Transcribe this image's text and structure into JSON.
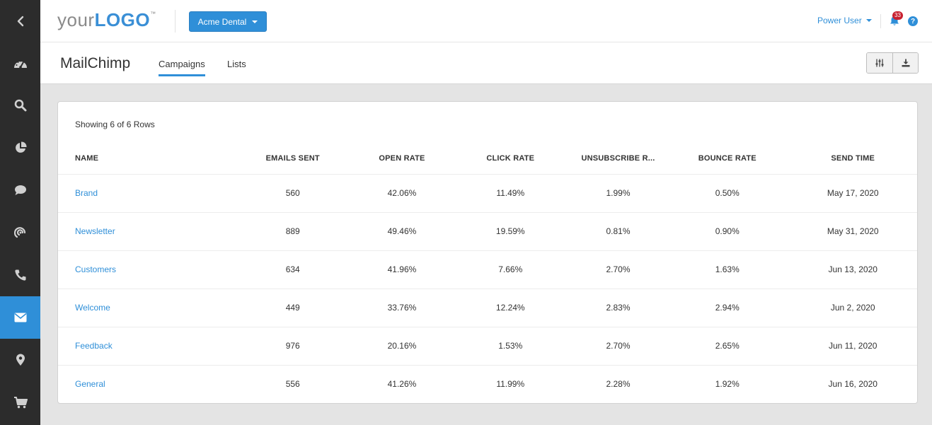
{
  "sidebar": {
    "items": [
      {
        "icon": "chevron-left-icon"
      },
      {
        "icon": "dashboard-icon"
      },
      {
        "icon": "search-icon"
      },
      {
        "icon": "pie-chart-icon"
      },
      {
        "icon": "chat-icon"
      },
      {
        "icon": "signal-icon"
      },
      {
        "icon": "phone-icon"
      },
      {
        "icon": "envelope-icon",
        "active": true
      },
      {
        "icon": "map-pin-icon"
      },
      {
        "icon": "cart-icon"
      }
    ]
  },
  "header": {
    "logo": {
      "part1": "your",
      "part2": "LOGO",
      "tm": "™"
    },
    "account_selector": "Acme Dental",
    "user_menu": "Power User",
    "notification_count": "33",
    "help": "?"
  },
  "subheader": {
    "title": "MailChimp",
    "tabs": [
      {
        "label": "Campaigns",
        "active": true
      },
      {
        "label": "Lists",
        "active": false
      }
    ]
  },
  "table": {
    "row_count_text": "Showing 6 of 6 Rows",
    "columns": [
      "NAME",
      "EMAILS SENT",
      "OPEN RATE",
      "CLICK RATE",
      "UNSUBSCRIBE R...",
      "BOUNCE RATE",
      "SEND TIME"
    ],
    "rows": [
      {
        "name": "Brand",
        "emails_sent": "560",
        "open_rate": "42.06%",
        "click_rate": "11.49%",
        "unsubscribe_rate": "1.99%",
        "bounce_rate": "0.50%",
        "send_time": "May 17, 2020"
      },
      {
        "name": "Newsletter",
        "emails_sent": "889",
        "open_rate": "49.46%",
        "click_rate": "19.59%",
        "unsubscribe_rate": "0.81%",
        "bounce_rate": "0.90%",
        "send_time": "May 31, 2020"
      },
      {
        "name": "Customers",
        "emails_sent": "634",
        "open_rate": "41.96%",
        "click_rate": "7.66%",
        "unsubscribe_rate": "2.70%",
        "bounce_rate": "1.63%",
        "send_time": "Jun 13, 2020"
      },
      {
        "name": "Welcome",
        "emails_sent": "449",
        "open_rate": "33.76%",
        "click_rate": "12.24%",
        "unsubscribe_rate": "2.83%",
        "bounce_rate": "2.94%",
        "send_time": "Jun 2, 2020"
      },
      {
        "name": "Feedback",
        "emails_sent": "976",
        "open_rate": "20.16%",
        "click_rate": "1.53%",
        "unsubscribe_rate": "2.70%",
        "bounce_rate": "2.65%",
        "send_time": "Jun 11, 2020"
      },
      {
        "name": "General",
        "emails_sent": "556",
        "open_rate": "41.26%",
        "click_rate": "11.99%",
        "unsubscribe_rate": "2.28%",
        "bounce_rate": "1.92%",
        "send_time": "Jun 16, 2020"
      }
    ]
  },
  "colors": {
    "accent": "#2f8fd8",
    "sidebar_bg": "#2c2c2c",
    "badge": "#c8202f"
  }
}
